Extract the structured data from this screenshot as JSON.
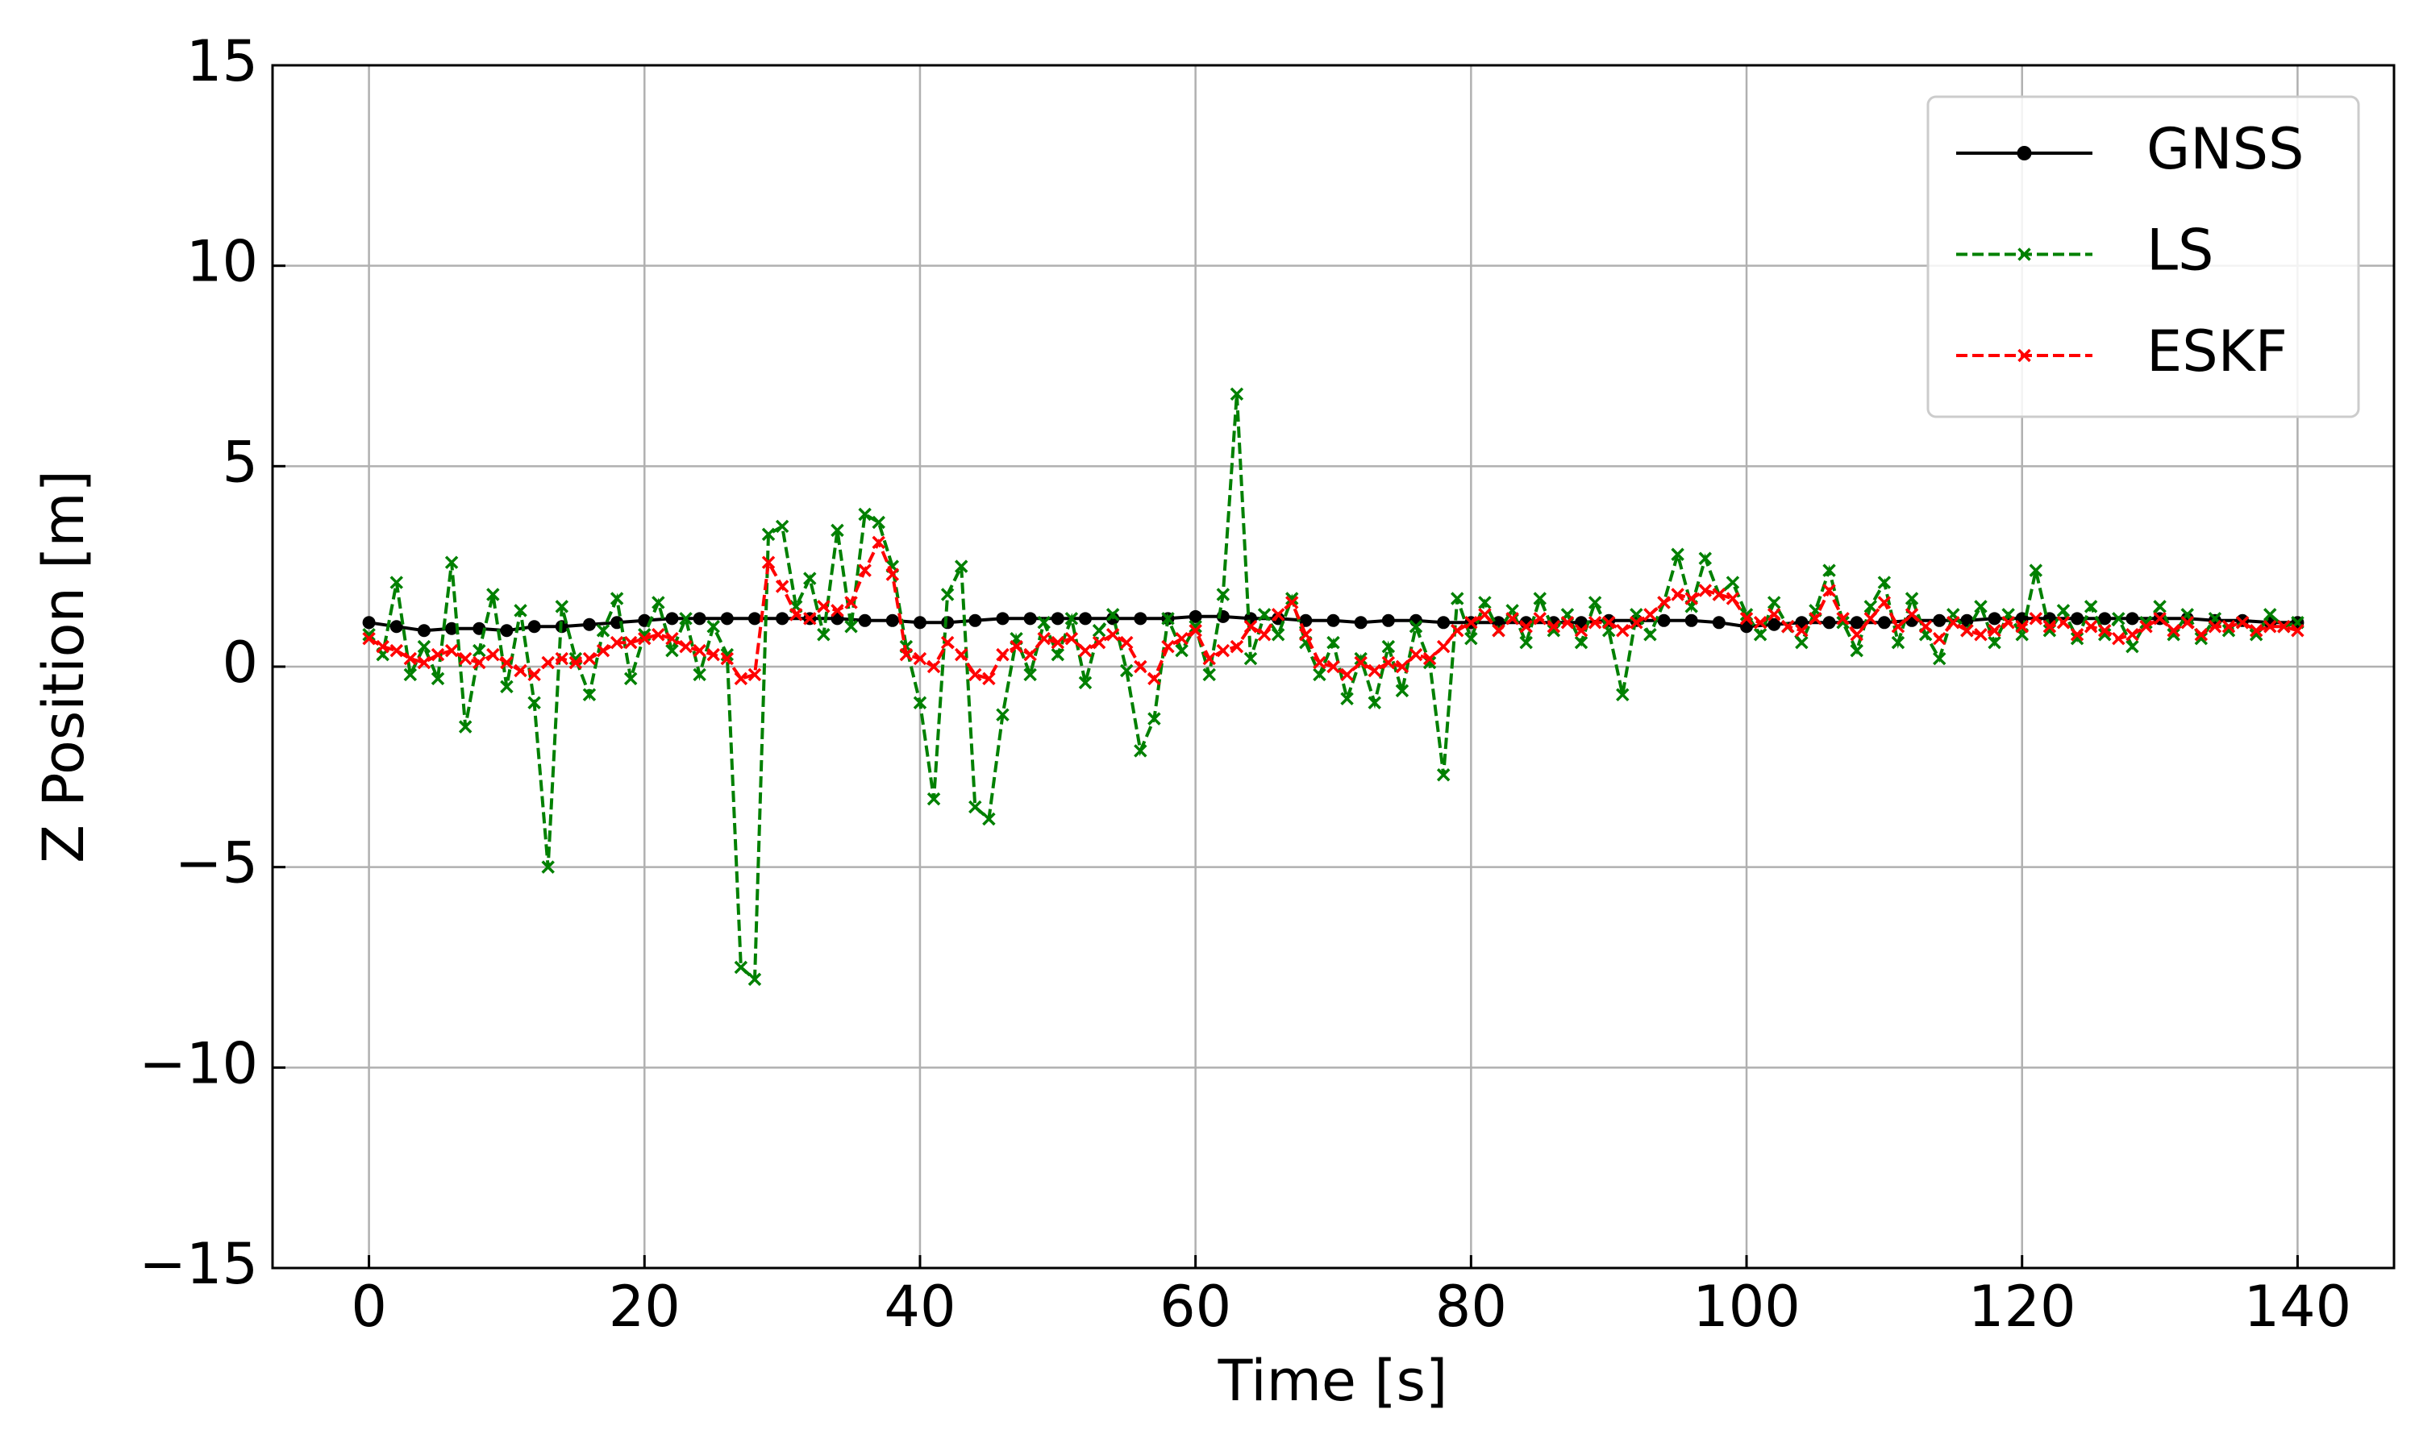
{
  "chart_data": {
    "type": "line",
    "xlabel": "Time [s]",
    "ylabel": "Z Position [m]",
    "xlim": [
      -7,
      147
    ],
    "xticks": [
      0,
      20,
      40,
      60,
      80,
      100,
      120,
      140
    ],
    "ylim": [
      -15,
      15
    ],
    "yticks": [
      {
        "value": -15,
        "label": "−15"
      },
      {
        "value": -10,
        "label": "−10"
      },
      {
        "value": -5,
        "label": "−5"
      },
      0,
      5,
      10,
      15
    ],
    "grid": true,
    "legend": "upper right",
    "series": [
      {
        "name": "GNSS",
        "color": "#000000",
        "linestyle": "solid",
        "marker": "circle",
        "x": [
          0,
          2,
          4,
          6,
          8,
          10,
          12,
          14,
          16,
          18,
          20,
          22,
          24,
          26,
          28,
          30,
          32,
          34,
          36,
          38,
          40,
          42,
          44,
          46,
          48,
          50,
          52,
          54,
          56,
          58,
          60,
          62,
          64,
          66,
          68,
          70,
          72,
          74,
          76,
          78,
          80,
          82,
          84,
          86,
          88,
          90,
          92,
          94,
          96,
          98,
          100,
          102,
          104,
          106,
          108,
          110,
          112,
          114,
          116,
          118,
          120,
          122,
          124,
          126,
          128,
          130,
          132,
          134,
          136,
          138,
          140
        ],
        "values": [
          1.1,
          1.0,
          0.9,
          0.95,
          0.95,
          0.9,
          1.0,
          1.0,
          1.05,
          1.1,
          1.15,
          1.2,
          1.2,
          1.2,
          1.2,
          1.2,
          1.2,
          1.2,
          1.15,
          1.15,
          1.1,
          1.1,
          1.15,
          1.2,
          1.2,
          1.2,
          1.2,
          1.2,
          1.2,
          1.2,
          1.25,
          1.25,
          1.2,
          1.2,
          1.15,
          1.15,
          1.1,
          1.15,
          1.15,
          1.1,
          1.1,
          1.1,
          1.1,
          1.1,
          1.1,
          1.15,
          1.15,
          1.15,
          1.15,
          1.1,
          1.0,
          1.05,
          1.1,
          1.1,
          1.1,
          1.1,
          1.15,
          1.15,
          1.15,
          1.2,
          1.2,
          1.2,
          1.2,
          1.2,
          1.2,
          1.2,
          1.2,
          1.15,
          1.15,
          1.1,
          1.1
        ]
      },
      {
        "name": "LS",
        "color": "#008000",
        "linestyle": "dashed",
        "marker": "x",
        "x": [
          0,
          1,
          2,
          3,
          4,
          5,
          6,
          7,
          8,
          9,
          10,
          11,
          12,
          13,
          14,
          15,
          16,
          17,
          18,
          19,
          20,
          21,
          22,
          23,
          24,
          25,
          26,
          27,
          28,
          29,
          30,
          31,
          32,
          33,
          34,
          35,
          36,
          37,
          38,
          39,
          40,
          41,
          42,
          43,
          44,
          45,
          46,
          47,
          48,
          49,
          50,
          51,
          52,
          53,
          54,
          55,
          56,
          57,
          58,
          59,
          60,
          61,
          62,
          63,
          64,
          65,
          66,
          67,
          68,
          69,
          70,
          71,
          72,
          73,
          74,
          75,
          76,
          77,
          78,
          79,
          80,
          81,
          82,
          83,
          84,
          85,
          86,
          87,
          88,
          89,
          90,
          91,
          92,
          93,
          94,
          95,
          96,
          97,
          98,
          99,
          100,
          101,
          102,
          103,
          104,
          105,
          106,
          107,
          108,
          109,
          110,
          111,
          112,
          113,
          114,
          115,
          116,
          117,
          118,
          119,
          120,
          121,
          122,
          123,
          124,
          125,
          126,
          127,
          128,
          129,
          130,
          131,
          132,
          133,
          134,
          135,
          136,
          137,
          138,
          139,
          140
        ],
        "values": [
          0.8,
          0.3,
          2.1,
          -0.2,
          0.5,
          -0.3,
          2.6,
          -1.5,
          0.4,
          1.8,
          -0.5,
          1.4,
          -0.9,
          -5.0,
          1.5,
          0.2,
          -0.7,
          0.9,
          1.7,
          -0.3,
          0.8,
          1.6,
          0.4,
          1.2,
          -0.2,
          1.0,
          0.3,
          -7.5,
          -7.8,
          3.3,
          3.5,
          1.5,
          2.2,
          0.8,
          3.4,
          1.0,
          3.8,
          3.6,
          2.5,
          0.5,
          -0.9,
          -3.3,
          1.8,
          2.5,
          -3.5,
          -3.8,
          -1.2,
          0.7,
          -0.2,
          1.1,
          0.3,
          1.2,
          -0.4,
          0.9,
          1.3,
          -0.1,
          -2.1,
          -1.3,
          1.2,
          0.4,
          1.0,
          -0.2,
          1.8,
          6.8,
          0.2,
          1.3,
          0.8,
          1.7,
          0.6,
          -0.2,
          0.6,
          -0.8,
          0.2,
          -0.9,
          0.5,
          -0.6,
          1.0,
          0.1,
          -2.7,
          1.7,
          0.7,
          1.6,
          0.9,
          1.4,
          0.6,
          1.7,
          0.9,
          1.3,
          0.6,
          1.6,
          0.9,
          -0.7,
          1.3,
          0.8,
          1.6,
          2.8,
          1.5,
          2.7,
          1.8,
          2.1,
          1.3,
          0.8,
          1.6,
          1.0,
          0.6,
          1.4,
          2.4,
          1.1,
          0.4,
          1.5,
          2.1,
          0.6,
          1.7,
          0.8,
          0.2,
          1.3,
          0.9,
          1.5,
          0.6,
          1.3,
          0.8,
          2.4,
          0.9,
          1.4,
          0.7,
          1.5,
          0.8,
          1.2,
          0.5,
          1.1,
          1.5,
          0.8,
          1.3,
          0.7,
          1.2,
          0.9,
          1.1,
          0.8,
          1.3,
          1.0,
          1.1
        ]
      },
      {
        "name": "ESKF",
        "color": "#ff0000",
        "linestyle": "dashed",
        "marker": "x",
        "x": [
          0,
          1,
          2,
          3,
          4,
          5,
          6,
          7,
          8,
          9,
          10,
          11,
          12,
          13,
          14,
          15,
          16,
          17,
          18,
          19,
          20,
          21,
          22,
          23,
          24,
          25,
          26,
          27,
          28,
          29,
          30,
          31,
          32,
          33,
          34,
          35,
          36,
          37,
          38,
          39,
          40,
          41,
          42,
          43,
          44,
          45,
          46,
          47,
          48,
          49,
          50,
          51,
          52,
          53,
          54,
          55,
          56,
          57,
          58,
          59,
          60,
          61,
          62,
          63,
          64,
          65,
          66,
          67,
          68,
          69,
          70,
          71,
          72,
          73,
          74,
          75,
          76,
          77,
          78,
          79,
          80,
          81,
          82,
          83,
          84,
          85,
          86,
          87,
          88,
          89,
          90,
          91,
          92,
          93,
          94,
          95,
          96,
          97,
          98,
          99,
          100,
          101,
          102,
          103,
          104,
          105,
          106,
          107,
          108,
          109,
          110,
          111,
          112,
          113,
          114,
          115,
          116,
          117,
          118,
          119,
          120,
          121,
          122,
          123,
          124,
          125,
          126,
          127,
          128,
          129,
          130,
          131,
          132,
          133,
          134,
          135,
          136,
          137,
          138,
          139,
          140
        ],
        "values": [
          0.7,
          0.5,
          0.4,
          0.2,
          0.1,
          0.3,
          0.4,
          0.2,
          0.1,
          0.3,
          0.1,
          -0.1,
          -0.2,
          0.1,
          0.2,
          0.1,
          0.2,
          0.4,
          0.6,
          0.6,
          0.7,
          0.8,
          0.7,
          0.5,
          0.4,
          0.3,
          0.2,
          -0.3,
          -0.2,
          2.6,
          2.0,
          1.3,
          1.2,
          1.5,
          1.4,
          1.6,
          2.4,
          3.1,
          2.3,
          0.3,
          0.2,
          0.0,
          0.6,
          0.3,
          -0.2,
          -0.3,
          0.3,
          0.5,
          0.3,
          0.7,
          0.6,
          0.7,
          0.4,
          0.6,
          0.8,
          0.6,
          0.0,
          -0.3,
          0.5,
          0.7,
          0.9,
          0.2,
          0.4,
          0.5,
          1.0,
          0.8,
          1.3,
          1.6,
          0.8,
          0.1,
          0.0,
          -0.2,
          0.1,
          -0.1,
          0.1,
          0.0,
          0.3,
          0.2,
          0.5,
          0.9,
          1.1,
          1.3,
          0.9,
          1.2,
          1.0,
          1.2,
          1.0,
          1.1,
          0.9,
          1.1,
          1.1,
          0.9,
          1.1,
          1.3,
          1.6,
          1.8,
          1.7,
          1.9,
          1.8,
          1.7,
          1.2,
          1.1,
          1.3,
          1.0,
          0.9,
          1.2,
          1.9,
          1.2,
          0.8,
          1.2,
          1.6,
          1.0,
          1.3,
          1.0,
          0.7,
          1.1,
          0.9,
          0.8,
          0.9,
          1.1,
          1.0,
          1.2,
          1.0,
          1.1,
          0.8,
          1.0,
          0.9,
          0.7,
          0.8,
          1.0,
          1.2,
          0.9,
          1.1,
          0.8,
          1.0,
          1.0,
          1.1,
          0.9,
          1.0,
          1.0,
          0.9
        ]
      }
    ]
  }
}
